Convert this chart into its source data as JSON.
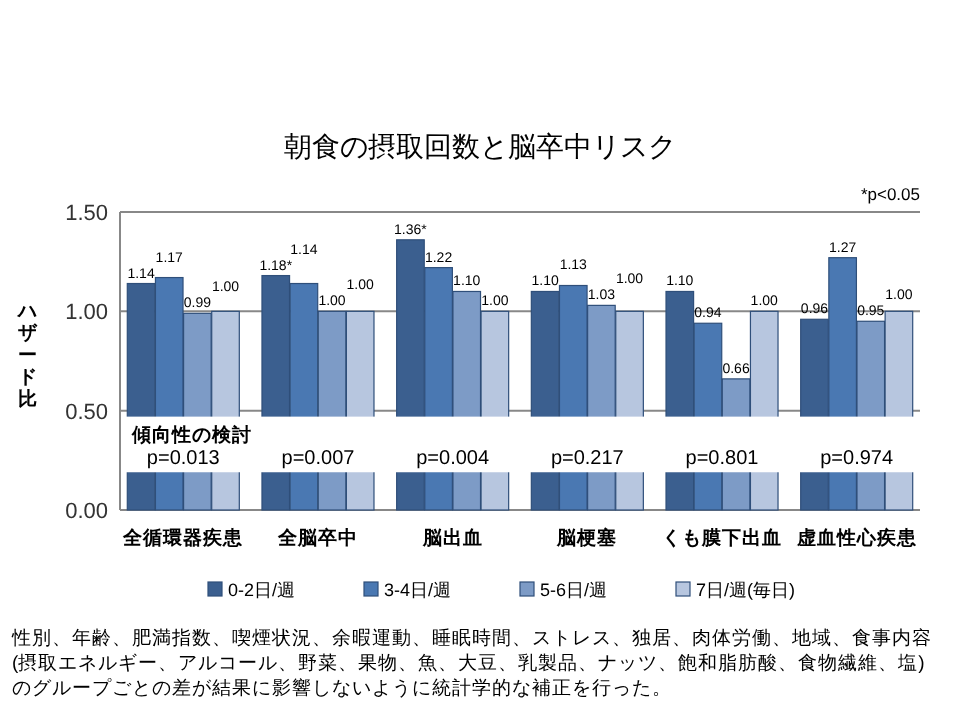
{
  "chart_data": {
    "type": "bar",
    "title": "朝食の摂取回数と脳卒中リスク",
    "ylabel": "ハザード比",
    "categories": [
      "全循環器疾患",
      "全脳卒中",
      "脳出血",
      "脳梗塞",
      "くも膜下出血",
      "虚血性心疾患"
    ],
    "series": [
      {
        "name": "0-2日/週",
        "color": "#3b5f8f",
        "values": [
          1.14,
          1.18,
          1.36,
          1.1,
          1.1,
          0.96
        ],
        "value_labels": [
          "1.14",
          "1.18*",
          "1.36*",
          "1.10",
          "1.10",
          "0.96"
        ]
      },
      {
        "name": "3-4日/週",
        "color": "#4a78b2",
        "values": [
          1.17,
          1.14,
          1.22,
          1.13,
          0.94,
          1.27
        ],
        "value_labels": [
          "1.17",
          "1.14",
          "1.22",
          "1.13",
          "0.94",
          "1.27"
        ]
      },
      {
        "name": "5-6日/週",
        "color": "#7d9bc6",
        "values": [
          0.99,
          1.0,
          1.1,
          1.03,
          0.66,
          0.95
        ],
        "value_labels": [
          "0.99",
          "1.00",
          "1.10",
          "1.03",
          "0.66",
          "0.95"
        ]
      },
      {
        "name": "7日/週(毎日)",
        "color": "#b7c6df",
        "values": [
          1.0,
          1.0,
          1.0,
          1.0,
          1.0,
          1.0
        ],
        "value_labels": [
          "1.00",
          "1.00",
          "1.00",
          "1.00",
          "1.00",
          "1.00"
        ]
      }
    ],
    "ylim": [
      0,
      1.5
    ],
    "yticks": [
      {
        "value": 0,
        "label": "0.00"
      },
      {
        "value": 0.5,
        "label": "0.50"
      },
      {
        "value": 1,
        "label": "1.00"
      },
      {
        "value": 1.5,
        "label": "1.50"
      }
    ],
    "grid": "y",
    "legend": "bottom",
    "annotations": [
      "*p<0.05",
      "傾向性の検討",
      {
        "text": "p=0.013",
        "x": "全循環器疾患"
      },
      {
        "text": "p=0.007",
        "x": "全脳卒中"
      },
      {
        "text": "p=0.004",
        "x": "脳出血"
      },
      {
        "text": "p=0.217",
        "x": "脳梗塞"
      },
      {
        "text": "p=0.801",
        "x": "くも膜下出血"
      },
      {
        "text": "p=0.974",
        "x": "虚血性心疾患"
      },
      "性別、年齢、肥満指数、喫煙状況、余暇運動、睡眠時間、ストレス、独居、肉体労働、地域、食事内容(摂取エネルギー、アルコール、野菜、果物、魚、大豆、乳製品、ナッツ、飽和脂肪酸、食物繊維、塩)のグループごとの差が結果に影響しないように統計学的な補正を行った。"
    ]
  }
}
